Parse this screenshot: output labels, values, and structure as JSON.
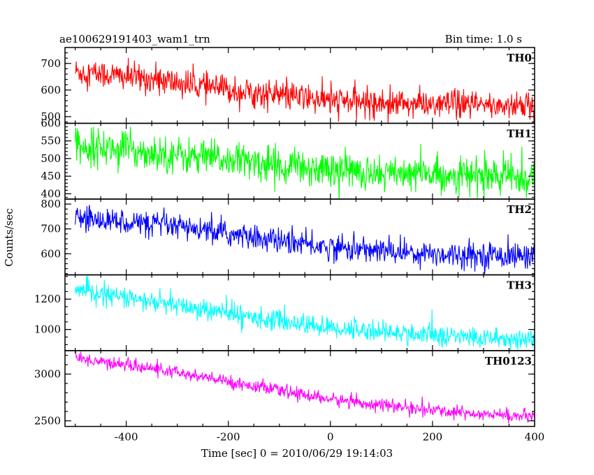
{
  "header": {
    "title": "ae100629191403_wam1_trn",
    "bin_time": "Bin time: 1.0 s"
  },
  "chart_data": {
    "type": "line",
    "xlabel": "Time [sec] 0 = 2010/06/29 19:14:03",
    "ylabel": "Counts/sec",
    "xlim": [
      -520,
      400
    ],
    "x_ticks": [
      -400,
      -200,
      0,
      200,
      400
    ],
    "x_minor_step": 50,
    "x_start": -500,
    "x_end": 400,
    "panels": [
      {
        "name": "TH0",
        "color": "#ff0000",
        "ylim": [
          475,
          760
        ],
        "ticks": [
          500,
          600,
          700
        ],
        "top_label": "",
        "minor_step": 20,
        "trend": [
          [
            -500,
            670
          ],
          [
            -350,
            640
          ],
          [
            -200,
            600
          ],
          [
            0,
            560
          ],
          [
            200,
            545
          ],
          [
            400,
            540
          ]
        ],
        "noise": 32
      },
      {
        "name": "TH1",
        "color": "#00ff00",
        "ylim": [
          385,
          600
        ],
        "ticks": [
          400,
          450,
          500,
          550
        ],
        "top_label": "600",
        "minor_step": 10,
        "trend": [
          [
            -500,
            540
          ],
          [
            -300,
            510
          ],
          [
            -100,
            480
          ],
          [
            100,
            460
          ],
          [
            400,
            445
          ]
        ],
        "noise": 30
      },
      {
        "name": "TH2",
        "color": "#0000ff",
        "ylim": [
          515,
          820
        ],
        "ticks": [
          600,
          700,
          800
        ],
        "top_label": "",
        "minor_step": 20,
        "trend": [
          [
            -500,
            745
          ],
          [
            -350,
            720
          ],
          [
            -150,
            665
          ],
          [
            0,
            625
          ],
          [
            200,
            600
          ],
          [
            400,
            590
          ]
        ],
        "noise": 30
      },
      {
        "name": "TH3",
        "color": "#00ffff",
        "ylim": [
          860,
          1360
        ],
        "ticks": [
          1000,
          1200
        ],
        "top_label": "",
        "minor_step": 50,
        "trend": [
          [
            -500,
            1260
          ],
          [
            -350,
            1180
          ],
          [
            -150,
            1080
          ],
          [
            0,
            1010
          ],
          [
            200,
            960
          ],
          [
            400,
            930
          ]
        ],
        "noise": 40
      },
      {
        "name": "TH0123",
        "color": "#ff00ff",
        "ylim": [
          2440,
          3250
        ],
        "ticks": [
          2500,
          3000
        ],
        "top_label": "",
        "minor_step": 100,
        "trend": [
          [
            -500,
            3170
          ],
          [
            -350,
            3060
          ],
          [
            -150,
            2870
          ],
          [
            0,
            2730
          ],
          [
            200,
            2610
          ],
          [
            400,
            2540
          ]
        ],
        "noise": 40
      }
    ]
  }
}
